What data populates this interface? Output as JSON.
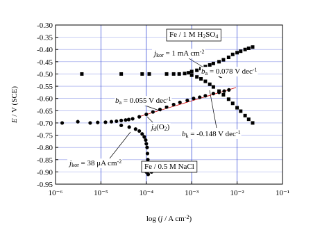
{
  "chart_data": {
    "type": "scatter",
    "x_label": [
      {
        "t": "log ("
      },
      {
        "t": "j",
        "i": true
      },
      {
        "t": " / A cm"
      },
      {
        "t": "-2",
        "s": "sup"
      },
      {
        "t": ")"
      }
    ],
    "y_label": [
      {
        "t": "E",
        "i": true
      },
      {
        "t": " / V (SCE)"
      }
    ],
    "xscale": "log",
    "xlim": [
      1e-06,
      0.1
    ],
    "xticks": [
      {
        "value": 1e-06,
        "label": "10⁻⁶"
      },
      {
        "value": 1e-05,
        "label": "10⁻⁵"
      },
      {
        "value": 0.0001,
        "label": "10⁻⁴"
      },
      {
        "value": 0.001,
        "label": "10⁻³"
      },
      {
        "value": 0.01,
        "label": "10⁻²"
      },
      {
        "value": 0.1,
        "label": "10⁻¹"
      }
    ],
    "ylim": [
      -0.95,
      -0.3
    ],
    "yticks": [
      {
        "value": -0.95,
        "label": "-0.95"
      },
      {
        "value": -0.9,
        "label": "-0.90"
      },
      {
        "value": -0.85,
        "label": "-0.85"
      },
      {
        "value": -0.8,
        "label": "-0.80"
      },
      {
        "value": -0.75,
        "label": "-0.75"
      },
      {
        "value": -0.7,
        "label": "-0.70"
      },
      {
        "value": -0.65,
        "label": "-0.65"
      },
      {
        "value": -0.6,
        "label": "-0.60"
      },
      {
        "value": -0.55,
        "label": "-0.55"
      },
      {
        "value": -0.5,
        "label": "-0.50"
      },
      {
        "value": -0.45,
        "label": "-0.45"
      },
      {
        "value": -0.4,
        "label": "-0.40"
      },
      {
        "value": -0.35,
        "label": "-0.35"
      },
      {
        "value": -0.3,
        "label": "-0.30"
      }
    ],
    "grid": true,
    "grid_color": "#3b4fd8",
    "series": [
      {
        "marker": "square",
        "color": "#000000",
        "x": [
          3.8e-06,
          2.8e-05,
          8.1e-05,
          0.000116,
          0.00028,
          0.0004,
          0.00053,
          0.0007,
          0.00085,
          0.001,
          0.0013,
          0.0016,
          0.002,
          0.0025,
          0.003,
          0.004,
          0.005,
          0.0065,
          0.008,
          0.01,
          0.012,
          0.015,
          0.018,
          0.022,
          0.001,
          0.0013,
          0.0016,
          0.002,
          0.0025,
          0.003,
          0.004,
          0.005,
          0.0065,
          0.008,
          0.01,
          0.012,
          0.015,
          0.018,
          0.022
        ],
        "y": [
          -0.5,
          -0.5,
          -0.5,
          -0.5,
          -0.5,
          -0.5,
          -0.5,
          -0.498,
          -0.495,
          -0.49,
          -0.485,
          -0.478,
          -0.47,
          -0.463,
          -0.457,
          -0.45,
          -0.442,
          -0.432,
          -0.42,
          -0.413,
          -0.407,
          -0.4,
          -0.395,
          -0.39,
          -0.505,
          -0.512,
          -0.52,
          -0.53,
          -0.542,
          -0.553,
          -0.57,
          -0.585,
          -0.603,
          -0.62,
          -0.638,
          -0.652,
          -0.67,
          -0.685,
          -0.7
        ]
      },
      {
        "marker": "circle",
        "color": "#000000",
        "x": [
          1.4e-06,
          3.1e-06,
          5.8e-06,
          8.5e-06,
          1.26e-05,
          1.7e-05,
          2.2e-05,
          2.8e-05,
          3.5e-05,
          4.1e-05,
          5e-05,
          7e-05,
          0.0001,
          0.00014,
          0.0002,
          0.00028,
          0.0004,
          0.00055,
          0.0008,
          0.0011,
          0.0015,
          0.002,
          0.003,
          0.004,
          0.0052,
          0.0066,
          2.8e-05,
          4.2e-05,
          5.8e-05,
          7e-05,
          8.1e-05,
          9e-05,
          9.7e-05,
          0.0001,
          0.000104,
          0.000106,
          0.000108,
          0.000106,
          0.0001,
          0.00011,
          0.00013,
          0.00016
        ],
        "y": [
          -0.7,
          -0.695,
          -0.7,
          -0.698,
          -0.697,
          -0.695,
          -0.693,
          -0.69,
          -0.688,
          -0.686,
          -0.683,
          -0.675,
          -0.665,
          -0.655,
          -0.645,
          -0.635,
          -0.625,
          -0.616,
          -0.608,
          -0.6,
          -0.595,
          -0.589,
          -0.58,
          -0.575,
          -0.57,
          -0.565,
          -0.71,
          -0.717,
          -0.725,
          -0.733,
          -0.745,
          -0.757,
          -0.77,
          -0.785,
          -0.8,
          -0.825,
          -0.85,
          -0.875,
          -0.9,
          -0.91,
          -0.9,
          -0.89
        ]
      }
    ],
    "annotations": [
      {
        "box": true,
        "parts": [
          {
            "t": "Fe / 1 M H"
          },
          {
            "t": "2",
            "s": "sub"
          },
          {
            "t": "SO"
          },
          {
            "t": "4",
            "s": "sub"
          }
        ]
      },
      {
        "parts": [
          {
            "t": "j",
            "i": true
          },
          {
            "t": "kor",
            "s": "sub"
          },
          {
            "t": " = 1 mA cm"
          },
          {
            "t": "-2",
            "s": "sup"
          }
        ]
      },
      {
        "parts": [
          {
            "t": "b",
            "i": true
          },
          {
            "t": "a",
            "s": "sub"
          },
          {
            "t": " = 0.078 V dec"
          },
          {
            "t": "-1",
            "s": "sup"
          }
        ]
      },
      {
        "parts": [
          {
            "t": "b",
            "i": true
          },
          {
            "t": "a",
            "s": "sub"
          },
          {
            "t": " = 0.055 V dec"
          },
          {
            "t": "-1",
            "s": "sup"
          }
        ]
      },
      {
        "parts": [
          {
            "t": "b",
            "i": true
          },
          {
            "t": "k",
            "s": "sub"
          },
          {
            "t": " = -0.148 V dec"
          },
          {
            "t": "-1",
            "s": "sup"
          }
        ]
      },
      {
        "parts": [
          {
            "t": "j",
            "i": true
          },
          {
            "t": "d",
            "s": "sub"
          },
          {
            "t": "(O"
          },
          {
            "t": "2",
            "s": "sub"
          },
          {
            "t": ")"
          }
        ]
      },
      {
        "parts": [
          {
            "t": "j",
            "i": true
          },
          {
            "t": "kor",
            "s": "sub"
          },
          {
            "t": " = 38 μA cm"
          },
          {
            "t": "-2",
            "s": "sup"
          }
        ]
      },
      {
        "box": true,
        "parts": [
          {
            "t": "Fe / 0.5 M NaCl"
          }
        ]
      }
    ]
  }
}
